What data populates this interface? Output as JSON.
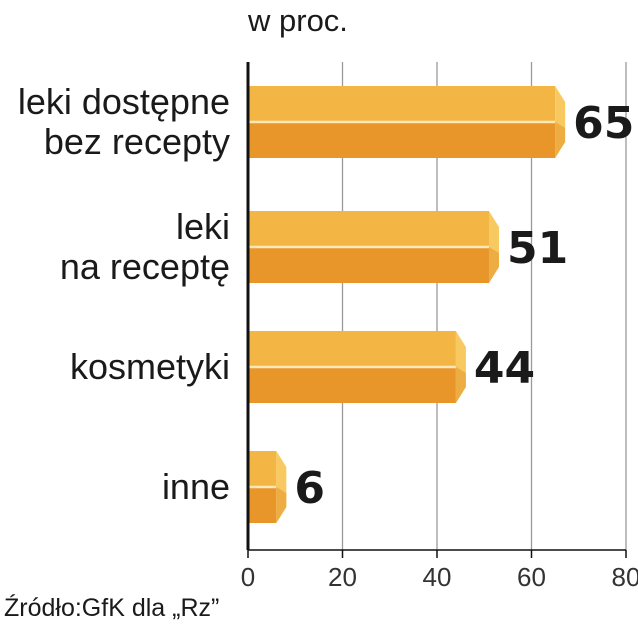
{
  "chart_data": {
    "type": "bar",
    "orientation": "horizontal",
    "unit_label": "w proc.",
    "categories": [
      [
        "leki dostępne",
        "bez recepty"
      ],
      [
        "leki",
        "na receptę"
      ],
      [
        "kosmetyki"
      ],
      [
        "inne"
      ]
    ],
    "values": [
      65,
      51,
      44,
      6
    ],
    "value_labels": [
      "65",
      "51",
      "44",
      "6"
    ],
    "xlim": [
      0,
      80
    ],
    "ticks": [
      0,
      20,
      40,
      60,
      80
    ],
    "tick_labels": [
      "0",
      "20",
      "40",
      "60",
      "80"
    ],
    "grid": true,
    "source": "Źródło:GfK dla „Rz”",
    "colors": {
      "bar_top": "#f3b544",
      "bar_bottom": "#e8952a",
      "bar_cap": "#f7c960",
      "bar_divider": "#ffe8b8",
      "grid": "#9a9a9a",
      "axis": "#111111"
    }
  }
}
